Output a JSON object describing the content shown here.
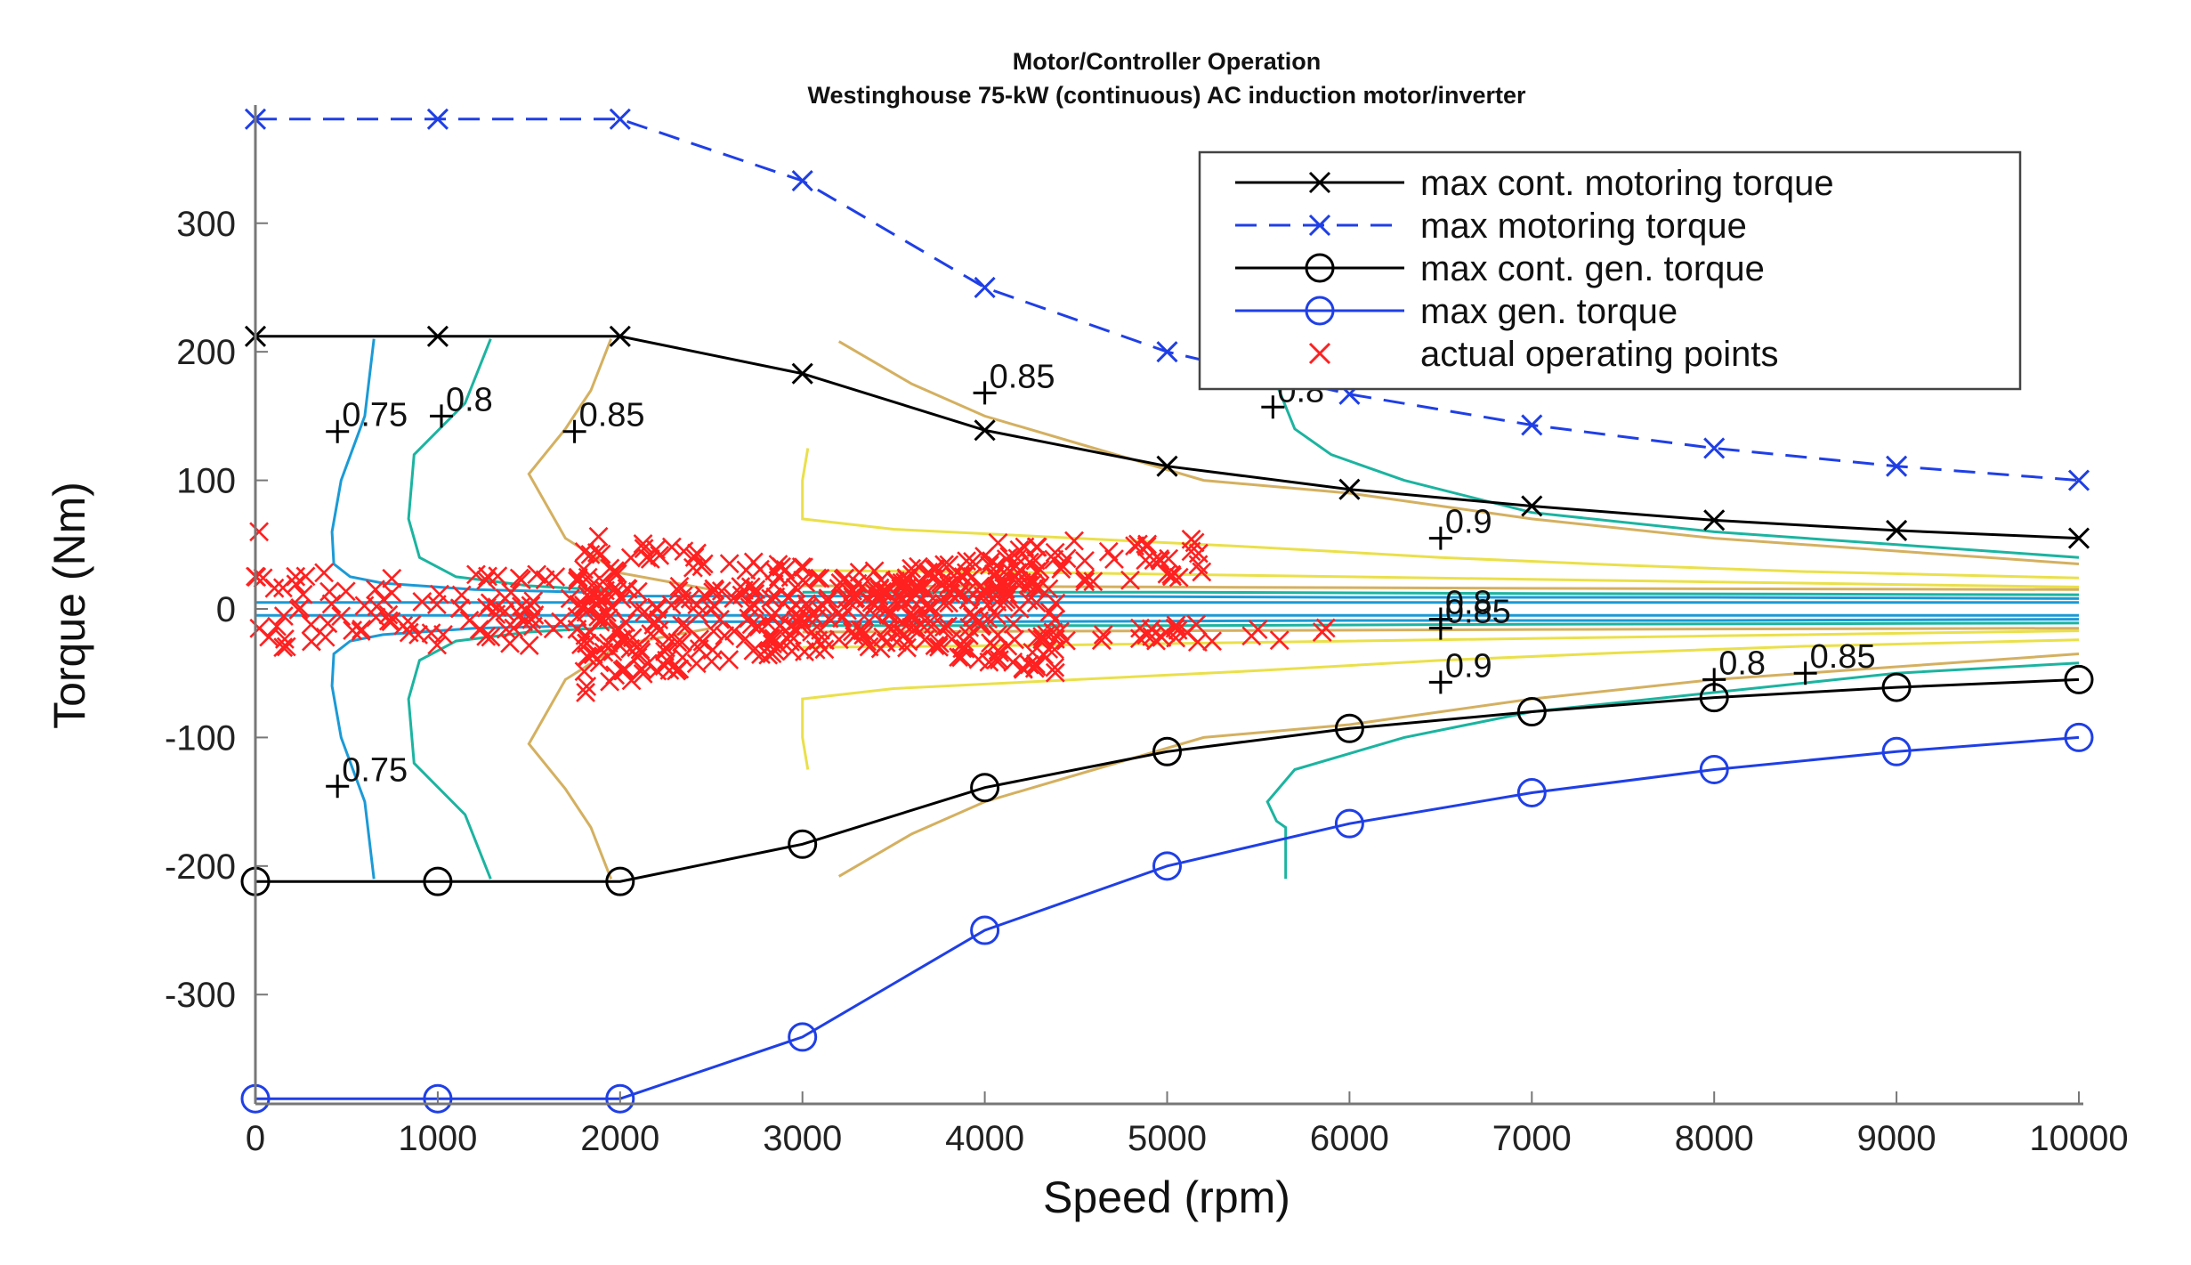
{
  "chart_data": {
    "type": "line",
    "title": "Motor/Controller Operation",
    "subtitle": "Westinghouse 75-kW (continuous) AC induction motor/inverter",
    "xlabel": "Speed (rpm)",
    "ylabel": "Torque (Nm)",
    "xlim": [
      0,
      10000
    ],
    "ylim": [
      -385,
      385
    ],
    "xticks": [
      0,
      1000,
      2000,
      3000,
      4000,
      5000,
      6000,
      7000,
      8000,
      9000,
      10000
    ],
    "yticks": [
      -300,
      -200,
      -100,
      0,
      100,
      200,
      300
    ],
    "grid": false,
    "legend_position": "top-right",
    "series": [
      {
        "name": "max cont. motoring torque",
        "color": "#000000",
        "dash": "solid",
        "marker": "x",
        "x": [
          0,
          1000,
          2000,
          3000,
          4000,
          5000,
          6000,
          7000,
          8000,
          9000,
          10000
        ],
        "y": [
          212,
          212,
          212,
          183,
          139,
          111,
          93,
          80,
          69,
          61,
          55
        ]
      },
      {
        "name": "max motoring torque",
        "color": "#1f3fe6",
        "dash": "dashed",
        "marker": "x",
        "x": [
          0,
          1000,
          2000,
          3000,
          4000,
          5000,
          6000,
          7000,
          8000,
          9000,
          10000
        ],
        "y": [
          381,
          381,
          381,
          333,
          250,
          200,
          167,
          143,
          125,
          111,
          100
        ]
      },
      {
        "name": "max cont. gen. torque",
        "color": "#000000",
        "dash": "solid",
        "marker": "o",
        "x": [
          0,
          1000,
          2000,
          3000,
          4000,
          5000,
          6000,
          7000,
          8000,
          9000,
          10000
        ],
        "y": [
          -212,
          -212,
          -212,
          -183,
          -139,
          -111,
          -93,
          -80,
          -69,
          -61,
          -55
        ]
      },
      {
        "name": "max gen. torque",
        "color": "#1f3fe6",
        "dash": "solid",
        "marker": "o",
        "x": [
          0,
          1000,
          2000,
          3000,
          4000,
          5000,
          6000,
          7000,
          8000,
          9000,
          10000
        ],
        "y": [
          -381,
          -381,
          -381,
          -333,
          -250,
          -200,
          -167,
          -143,
          -125,
          -111,
          -100
        ]
      },
      {
        "name": "actual operating points",
        "color": "#ff2020",
        "dash": "none",
        "marker": "x"
      }
    ],
    "contours": [
      {
        "level": "0.75",
        "color": "#1b9ad6",
        "x": [
          650,
          600,
          470,
          420,
          430,
          520,
          700,
          1000,
          1200,
          1500,
          1800
        ],
        "y": [
          210,
          150,
          100,
          60,
          35,
          25,
          20,
          17,
          15,
          14,
          13
        ]
      },
      {
        "level": "0.75",
        "color": "#1b9ad6",
        "x": [
          650,
          600,
          470,
          420,
          430,
          520,
          700,
          1000,
          1200,
          1500,
          1800
        ],
        "y": [
          -210,
          -150,
          -100,
          -60,
          -35,
          -25,
          -20,
          -17,
          -15,
          -14,
          -13
        ]
      },
      {
        "level": "0.8",
        "color": "#1bb4a0",
        "x": [
          1290,
          1150,
          870,
          840,
          900,
          1100,
          1500,
          2000
        ],
        "y": [
          210,
          160,
          120,
          70,
          40,
          25,
          18,
          14
        ]
      },
      {
        "level": "0.8",
        "color": "#1bb4a0",
        "x": [
          1290,
          1150,
          870,
          840,
          900,
          1100,
          1500,
          2000
        ],
        "y": [
          -210,
          -160,
          -120,
          -70,
          -40,
          -25,
          -18,
          -14
        ]
      },
      {
        "level": "0.85",
        "color": "#d4b060",
        "x": [
          1950,
          1840,
          1700,
          1500,
          1700,
          2000,
          2500
        ],
        "y": [
          210,
          170,
          140,
          105,
          55,
          28,
          15
        ]
      },
      {
        "level": "0.85",
        "color": "#d4b060",
        "x": [
          1950,
          1840,
          1700,
          1500,
          1700,
          2000,
          2500
        ],
        "y": [
          -210,
          -170,
          -140,
          -105,
          -55,
          -28,
          -15
        ]
      },
      {
        "level": "0.85",
        "color": "#d4b060",
        "x": [
          3200,
          3600,
          4000,
          4600,
          5200,
          6000,
          7000,
          8000,
          9000,
          10000
        ],
        "y": [
          208,
          175,
          150,
          125,
          100,
          90,
          70,
          55,
          45,
          35
        ]
      },
      {
        "level": "0.85",
        "color": "#d4b060",
        "x": [
          3200,
          3600,
          4000,
          4600,
          5200,
          6000,
          7000,
          8000,
          9000,
          10000
        ],
        "y": [
          -208,
          -175,
          -150,
          -125,
          -100,
          -90,
          -70,
          -55,
          -45,
          -35
        ]
      },
      {
        "level": "0.9",
        "color": "#eae04a",
        "x": [
          3030,
          3000,
          3000,
          3500,
          4500,
          5500,
          6500,
          7500,
          8500,
          10000
        ],
        "y": [
          125,
          100,
          70,
          62,
          55,
          48,
          40,
          34,
          29,
          24
        ]
      },
      {
        "level": "0.9",
        "color": "#eae04a",
        "x": [
          3030,
          3000,
          3000,
          3500,
          4500,
          5500,
          6500,
          7500,
          8500,
          10000
        ],
        "y": [
          -125,
          -100,
          -70,
          -62,
          -55,
          -48,
          -40,
          -34,
          -29,
          -24
        ]
      },
      {
        "level": "0.9",
        "color": "#eae04a",
        "x": [
          3000,
          4500,
          6000,
          8000,
          10000
        ],
        "y": [
          30,
          28,
          25,
          21,
          17
        ]
      },
      {
        "level": "0.9",
        "color": "#eae04a",
        "x": [
          3000,
          4500,
          6000,
          8000,
          10000
        ],
        "y": [
          -30,
          -28,
          -25,
          -21,
          -17
        ]
      },
      {
        "level": "0.8",
        "color": "#1bb4a0",
        "x": [
          5600,
          5700,
          5900,
          6300,
          7000,
          8000,
          9000,
          10000
        ],
        "y": [
          175,
          140,
          120,
          100,
          75,
          60,
          50,
          40
        ]
      },
      {
        "level": "0.8",
        "color": "#1bb4a0",
        "x": [
          5650,
          5650,
          5600,
          5550,
          5700,
          6300,
          7000,
          8000,
          9000,
          10000
        ],
        "y": [
          -210,
          -170,
          -165,
          -150,
          -125,
          -100,
          -80,
          -65,
          -50,
          -42
        ]
      },
      {
        "level": "",
        "color": "#1b9ad6",
        "x": [
          2000,
          4000,
          6000,
          8000,
          10000
        ],
        "y": [
          10,
          10,
          9,
          9,
          8
        ]
      },
      {
        "level": "",
        "color": "#1b9ad6",
        "x": [
          2000,
          4000,
          6000,
          8000,
          10000
        ],
        "y": [
          -10,
          -10,
          -9,
          -9,
          -8
        ]
      },
      {
        "level": "",
        "color": "#1bb4a0",
        "x": [
          3000,
          5000,
          7000,
          10000
        ],
        "y": [
          13,
          13,
          12,
          11
        ]
      },
      {
        "level": "",
        "color": "#1bb4a0",
        "x": [
          3000,
          5000,
          7000,
          10000
        ],
        "y": [
          -13,
          -13,
          -12,
          -11
        ]
      },
      {
        "level": "",
        "color": "#d4b060",
        "x": [
          3000,
          5000,
          7000,
          10000
        ],
        "y": [
          18,
          17,
          16,
          15
        ]
      },
      {
        "level": "",
        "color": "#d4b060",
        "x": [
          3000,
          5000,
          7000,
          10000
        ],
        "y": [
          -18,
          -17,
          -16,
          -15
        ]
      },
      {
        "level": "",
        "color": "#1b9ad6",
        "x": [
          0,
          10000
        ],
        "y": [
          5,
          5
        ]
      },
      {
        "level": "",
        "color": "#1b9ad6",
        "x": [
          0,
          10000
        ],
        "y": [
          -5,
          -5
        ]
      }
    ],
    "contour_labels": [
      {
        "text": "0.75",
        "x": 450,
        "y": 138
      },
      {
        "text": "0.8",
        "x": 1020,
        "y": 150
      },
      {
        "text": "0.85",
        "x": 1750,
        "y": 138
      },
      {
        "text": "0.85",
        "x": 4000,
        "y": 168
      },
      {
        "text": "0.8",
        "x": 5580,
        "y": 157
      },
      {
        "text": "0.9",
        "x": 6500,
        "y": 55
      },
      {
        "text": "0.8",
        "x": 6500,
        "y": -8
      },
      {
        "text": "0.85",
        "x": 6500,
        "y": -15
      },
      {
        "text": "0.9",
        "x": 6500,
        "y": -57
      },
      {
        "text": "0.8",
        "x": 8000,
        "y": -55
      },
      {
        "text": "0.85",
        "x": 8500,
        "y": -50
      },
      {
        "text": "0.75",
        "x": 450,
        "y": -138
      }
    ]
  }
}
